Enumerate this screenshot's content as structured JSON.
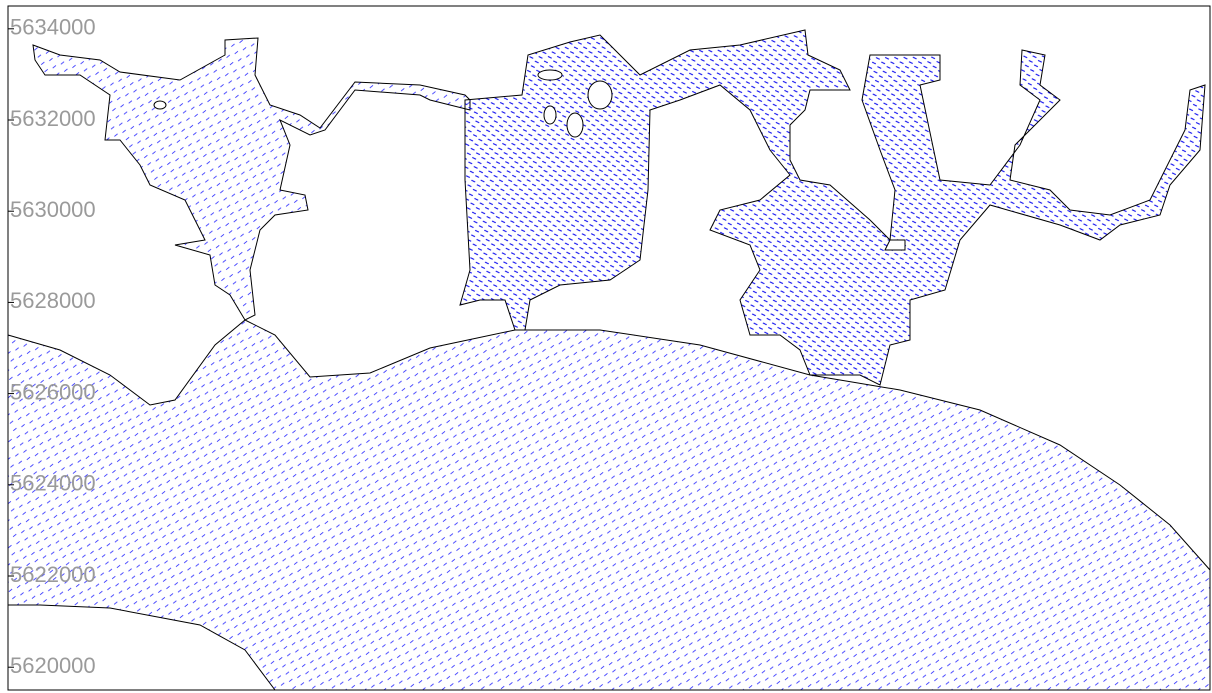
{
  "map": {
    "y_axis": {
      "ylim": [
        5619500,
        5634500
      ],
      "ticks": [
        5620000,
        5622000,
        5624000,
        5626000,
        5628000,
        5630000,
        5632000,
        5634000
      ]
    }
  }
}
